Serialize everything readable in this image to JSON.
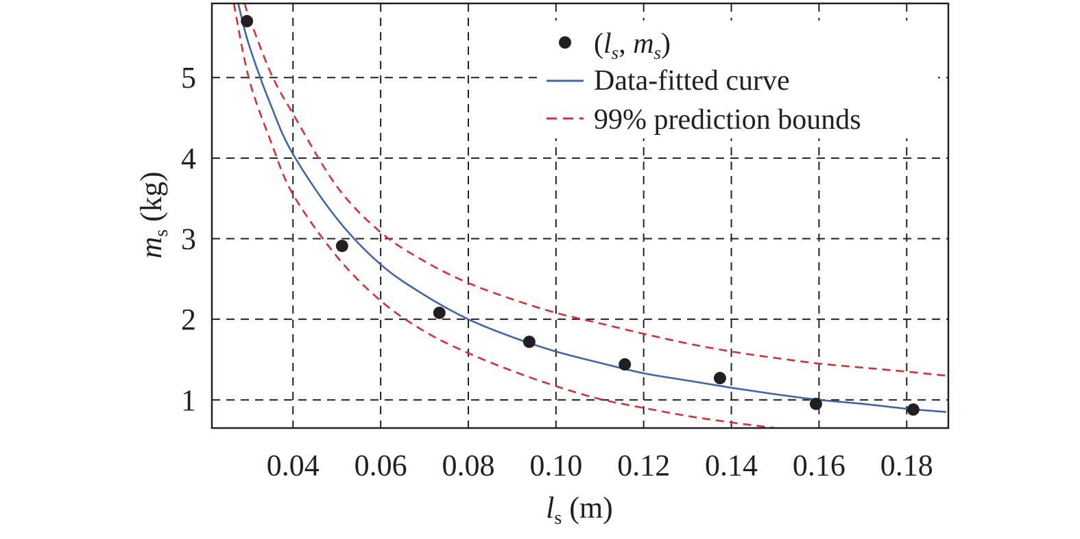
{
  "chart_data": {
    "type": "scatter",
    "title": "",
    "xlabel": {
      "main": "l",
      "sub": "s",
      "unit": " (m)"
    },
    "ylabel": {
      "main": "m",
      "sub": "s",
      "unit": " (kg)"
    },
    "xlim": [
      0.0215,
      0.1895
    ],
    "ylim": [
      0.65,
      5.92
    ],
    "x_ticks": [
      0.04,
      0.06,
      0.08,
      0.1,
      0.12,
      0.14,
      0.16,
      0.18
    ],
    "x_tick_labels": [
      "0.04",
      "0.06",
      "0.08",
      "0.10",
      "0.12",
      "0.14",
      "0.16",
      "0.18"
    ],
    "y_ticks": [
      1,
      2,
      3,
      4,
      5
    ],
    "y_tick_labels": [
      "1",
      "2",
      "3",
      "4",
      "5"
    ],
    "grid": true,
    "grid_style": "dashed",
    "legend_position": "top-right",
    "series": [
      {
        "name": "(l_s, m_s)",
        "kind": "points",
        "color": "#231f20",
        "x": [
          0.0295,
          0.0512,
          0.0734,
          0.0939,
          0.1157,
          0.1374,
          0.1593,
          0.1815
        ],
        "y": [
          5.7,
          2.91,
          2.08,
          1.72,
          1.44,
          1.27,
          0.95,
          0.88
        ]
      },
      {
        "name": "Data-fitted curve",
        "kind": "line",
        "color": "#3d64ad",
        "dash": "solid",
        "x": [
          0.0275,
          0.03,
          0.035,
          0.04,
          0.05,
          0.06,
          0.07,
          0.08,
          0.09,
          0.1,
          0.11,
          0.12,
          0.13,
          0.14,
          0.15,
          0.16,
          0.17,
          0.18,
          0.189
        ],
        "y": [
          5.92,
          5.4,
          4.65,
          4.05,
          3.25,
          2.68,
          2.3,
          2.0,
          1.78,
          1.6,
          1.46,
          1.33,
          1.24,
          1.15,
          1.07,
          1.0,
          0.95,
          0.89,
          0.85
        ]
      },
      {
        "name": "99% prediction bounds",
        "kind": "line",
        "color": "#e02a31",
        "dash": "dashed",
        "x": [
          0.029,
          0.03,
          0.035,
          0.04,
          0.05,
          0.06,
          0.07,
          0.08,
          0.09,
          0.1,
          0.11,
          0.12,
          0.13,
          0.14,
          0.15,
          0.16,
          0.17,
          0.18,
          0.189
        ],
        "y": [
          5.92,
          5.75,
          5.05,
          4.55,
          3.65,
          3.08,
          2.72,
          2.45,
          2.25,
          2.08,
          1.95,
          1.82,
          1.7,
          1.6,
          1.52,
          1.45,
          1.4,
          1.35,
          1.3
        ]
      },
      {
        "name": "",
        "kind": "line",
        "color": "#e02a31",
        "dash": "dashed",
        "x": [
          0.0265,
          0.03,
          0.035,
          0.04,
          0.05,
          0.06,
          0.07,
          0.08,
          0.09,
          0.1,
          0.11,
          0.12,
          0.13,
          0.14,
          0.15
        ],
        "y": [
          5.92,
          4.98,
          4.2,
          3.55,
          2.78,
          2.23,
          1.85,
          1.58,
          1.36,
          1.17,
          1.01,
          0.9,
          0.8,
          0.72,
          0.65
        ]
      }
    ],
    "legend": [
      {
        "label": "(l_s, m_s)",
        "marker": "point"
      },
      {
        "label": "Data-fitted curve",
        "marker": "solid-line"
      },
      {
        "label": "99% prediction bounds",
        "marker": "dashed-line"
      }
    ]
  },
  "legend_labels": {
    "points": {
      "open": "(",
      "l": "l",
      "l_sub": "s",
      "comma": ", ",
      "m": "m",
      "m_sub": "s",
      "close": ")"
    },
    "fit": "Data-fitted curve",
    "bounds": "99% prediction bounds"
  }
}
